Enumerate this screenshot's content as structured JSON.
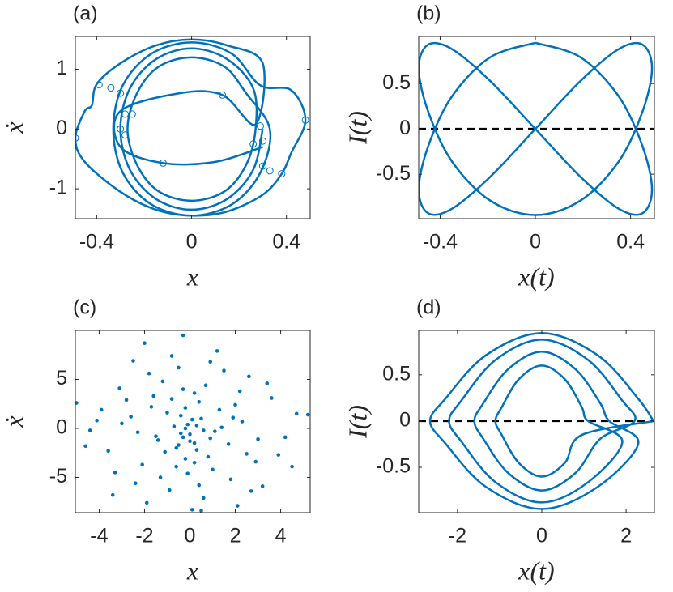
{
  "chart_data": [
    {
      "type": "line",
      "label": "(a)",
      "xlabel": "x",
      "ylabel": "ẋ",
      "color": "#0072bd",
      "x": [
        0.3,
        0.26,
        0.15,
        0,
        -0.15,
        -0.26,
        -0.3,
        -0.26,
        -0.15,
        0,
        0.15,
        0.26,
        0.27,
        0.23,
        0.14,
        0,
        -0.14,
        -0.23,
        -0.27,
        -0.23,
        -0.14,
        0,
        0.14,
        0.23,
        0.33,
        0.29,
        0.17,
        0,
        -0.17,
        -0.29,
        -0.33,
        -0.29,
        -0.17,
        0,
        0.17,
        0.29,
        0.42,
        0.48,
        0.42,
        0.38,
        0.3,
        0.15,
        0,
        -0.15,
        -0.3,
        -0.45,
        -0.49,
        -0.45,
        -0.42,
        -0.4,
        -0.3,
        -0.15,
        0,
        0.15,
        0.3,
        0.27,
        0.13,
        -0.05,
        -0.3,
        -0.3,
        -0.12,
        0.1,
        0.3
      ],
      "y": [
        0,
        -0.68,
        -1.17,
        -1.35,
        -1.17,
        -0.68,
        0,
        0.68,
        1.17,
        1.35,
        1.17,
        0.68,
        0,
        -0.6,
        -1.04,
        -1.2,
        -1.04,
        -0.6,
        0,
        0.6,
        1.04,
        1.2,
        1.04,
        0.6,
        0,
        -0.73,
        -1.26,
        -1.45,
        -1.26,
        -0.73,
        0,
        0.73,
        1.26,
        1.45,
        1.26,
        0.73,
        0.65,
        0.15,
        -0.4,
        -0.75,
        -1.1,
        -1.38,
        -1.45,
        -1.35,
        -1.05,
        -0.55,
        -0.15,
        0.3,
        0.4,
        0.75,
        1.1,
        1.4,
        1.5,
        1.4,
        1.1,
        0.08,
        0.57,
        0.6,
        0.3,
        -0.3,
        -0.57,
        -0.55,
        -0.3
      ],
      "marker_x": [
        -0.49,
        -0.39,
        -0.34,
        -0.3,
        -0.28,
        -0.3,
        -0.28,
        -0.12,
        0.13,
        0.26,
        0.29,
        0.3,
        0.3,
        0.33,
        0.38,
        0.48,
        -0.25
      ],
      "marker_y": [
        -0.15,
        0.74,
        0.69,
        0.6,
        0.25,
        0.0,
        -0.1,
        -0.57,
        0.57,
        -0.25,
        0.05,
        -0.2,
        -0.62,
        -0.7,
        -0.75,
        0.15,
        0.25
      ],
      "xlim": [
        -0.49,
        0.5
      ],
      "ylim": [
        -1.5,
        1.55
      ],
      "xticks": [
        -0.4,
        0,
        0.4
      ],
      "yticks": [
        -1,
        0,
        1
      ]
    },
    {
      "type": "line",
      "label": "(b)",
      "xlabel": "x(t)",
      "ylabel": "I(t)",
      "color": "#0072bd",
      "x": [
        0,
        0.19,
        0.35,
        0.45,
        0.49,
        0.45,
        0.35,
        0.19,
        0,
        -0.19,
        -0.35,
        -0.45,
        -0.49,
        -0.45,
        -0.35,
        -0.19,
        0,
        0.19,
        0.35,
        0.45,
        0.49,
        0.45,
        0.35,
        0.19,
        0,
        -0.19,
        -0.35,
        -0.45,
        -0.49,
        -0.45,
        -0.35,
        -0.19,
        0
      ],
      "y": [
        0.95,
        0.79,
        0.36,
        -0.19,
        -0.67,
        -0.93,
        -0.88,
        -0.53,
        0,
        0.53,
        0.88,
        0.93,
        0.67,
        0.19,
        -0.36,
        -0.79,
        -0.95,
        -0.79,
        -0.36,
        0.19,
        0.67,
        0.93,
        0.88,
        0.53,
        0,
        -0.53,
        -0.88,
        -0.93,
        -0.67,
        -0.19,
        0.36,
        0.79,
        0.95
      ],
      "hline": 0,
      "hline_color": "#000000",
      "xlim": [
        -0.49,
        0.5
      ],
      "ylim": [
        -0.99,
        1.02
      ],
      "xticks": [
        -0.4,
        0,
        0.4
      ],
      "yticks": [
        -0.5,
        0,
        0.5
      ]
    },
    {
      "type": "scatter",
      "label": "(c)",
      "xlabel": "x",
      "ylabel": "ẋ",
      "color": "#0072bd",
      "x": [
        -0.3,
        0.1,
        -0.5,
        0.4,
        -0.2,
        0.2,
        -0.8,
        0.6,
        -1.2,
        1.0,
        -1.6,
        1.5,
        -2.1,
        2.0,
        -2.6,
        2.5,
        -3.1,
        3.0,
        -3.6,
        3.6,
        -4.1,
        4.2,
        -4.6,
        4.7,
        -5.0,
        5.2,
        -0.1,
        0.0,
        -0.4,
        0.3,
        -0.6,
        0.7,
        -0.9,
        0.9,
        -1.4,
        1.3,
        -1.8,
        1.8,
        -2.3,
        2.3,
        -2.8,
        2.9,
        -3.3,
        3.4,
        -3.9,
        3.9,
        -4.4,
        4.5,
        0.2,
        -0.2,
        0.5,
        -0.7,
        1.1,
        -1.1,
        1.7,
        -1.7,
        2.2,
        -2.4,
        2.7,
        -3.0,
        -0.3,
        0.1,
        -0.5,
        0.4,
        -0.1,
        0.6,
        -1.0,
        0.8,
        -1.3,
        1.2,
        -1.9,
        2.1,
        -2.5,
        2.6,
        -3.4,
        3.2,
        0.0,
        -0.2,
        0.3,
        -0.4,
        0.9,
        -0.8,
        1.4,
        -1.5,
        1.9,
        -2.0,
        -0.6,
        0.5,
        -0.3,
        0.2
      ],
      "y": [
        9.5,
        -8.3,
        6.2,
        -5.8,
        2.1,
        -1.5,
        7.4,
        -7.1,
        4.8,
        -4.2,
        3.3,
        5.9,
        -3.7,
        2.4,
        1.2,
        -2.6,
        4.1,
        -1.1,
        -2.3,
        3.1,
        0.8,
        -0.9,
        -1.8,
        1.5,
        2.6,
        1.4,
        0.4,
        -0.6,
        1.3,
        -2.2,
        -3.9,
        4.4,
        -6.3,
        6.8,
        -1.2,
        1.9,
        5.6,
        -5.2,
        -0.4,
        0.7,
        2.9,
        -3.4,
        -4.5,
        4.6,
        1.9,
        -2.7,
        -0.2,
        -3.9,
        3.6,
        -3.1,
        1.0,
        0.2,
        -0.3,
        -2.4,
        -1.6,
        2.2,
        3.8,
        -5.6,
        -6.4,
        0.5,
        -0.9,
        0.9,
        -1.7,
        2.7,
        -4.6,
        -0.2,
        1.6,
        -2.9,
        -5.0,
        7.9,
        -7.6,
        -7.9,
        6.9,
        5.3,
        -6.8,
        -5.9,
        -1.3,
        0.0,
        0.3,
        -0.5,
        -1.0,
        3.0,
        0.1,
        -0.8,
        1.1,
        8.7,
        -2.0,
        -8.4,
        4.0,
        -3.5
      ],
      "xlim": [
        -5.05,
        5.3
      ],
      "ylim": [
        -8.6,
        10
      ],
      "xticks": [
        -4,
        -2,
        0,
        2,
        4
      ],
      "yticks": [
        -5,
        0,
        5
      ]
    },
    {
      "type": "line",
      "label": "(d)",
      "xlabel": "x(t)",
      "ylabel": "I(t)",
      "color": "#0072bd",
      "x": [
        2.65,
        2.29,
        1.33,
        0,
        -1.33,
        -2.29,
        -2.65,
        -2.29,
        -1.33,
        0,
        1.33,
        2.29,
        1.6,
        1.39,
        0.8,
        0,
        -0.8,
        -1.39,
        -1.6,
        -1.39,
        -0.8,
        0,
        0.8,
        1.39,
        2.2,
        1.91,
        1.1,
        0,
        -1.1,
        -1.91,
        -2.2,
        -1.91,
        -1.1,
        0,
        1.1,
        1.91,
        1.1,
        0.95,
        0.55,
        0,
        -0.55,
        -0.95,
        -1.1,
        -0.95,
        -0.55,
        0,
        0.55,
        0.95,
        2.65
      ],
      "y": [
        0,
        0.24,
        0.71,
        0.95,
        0.71,
        0.24,
        0,
        -0.24,
        -0.71,
        -0.95,
        -0.71,
        -0.24,
        0,
        0.19,
        0.56,
        0.75,
        0.56,
        0.19,
        0,
        -0.19,
        -0.56,
        -0.75,
        -0.56,
        -0.19,
        0,
        0.22,
        0.66,
        0.88,
        0.66,
        0.22,
        0,
        -0.22,
        -0.66,
        -0.88,
        -0.66,
        -0.22,
        0,
        0.15,
        0.45,
        0.6,
        0.45,
        0.15,
        0,
        -0.15,
        -0.45,
        -0.6,
        -0.45,
        -0.15,
        0
      ],
      "hline": 0,
      "hline_color": "#000000",
      "xlim": [
        -2.92,
        2.67
      ],
      "ylim": [
        -0.99,
        0.98
      ],
      "xticks": [
        -2,
        0,
        2
      ],
      "yticks": [
        -0.5,
        0,
        0.5
      ]
    }
  ]
}
